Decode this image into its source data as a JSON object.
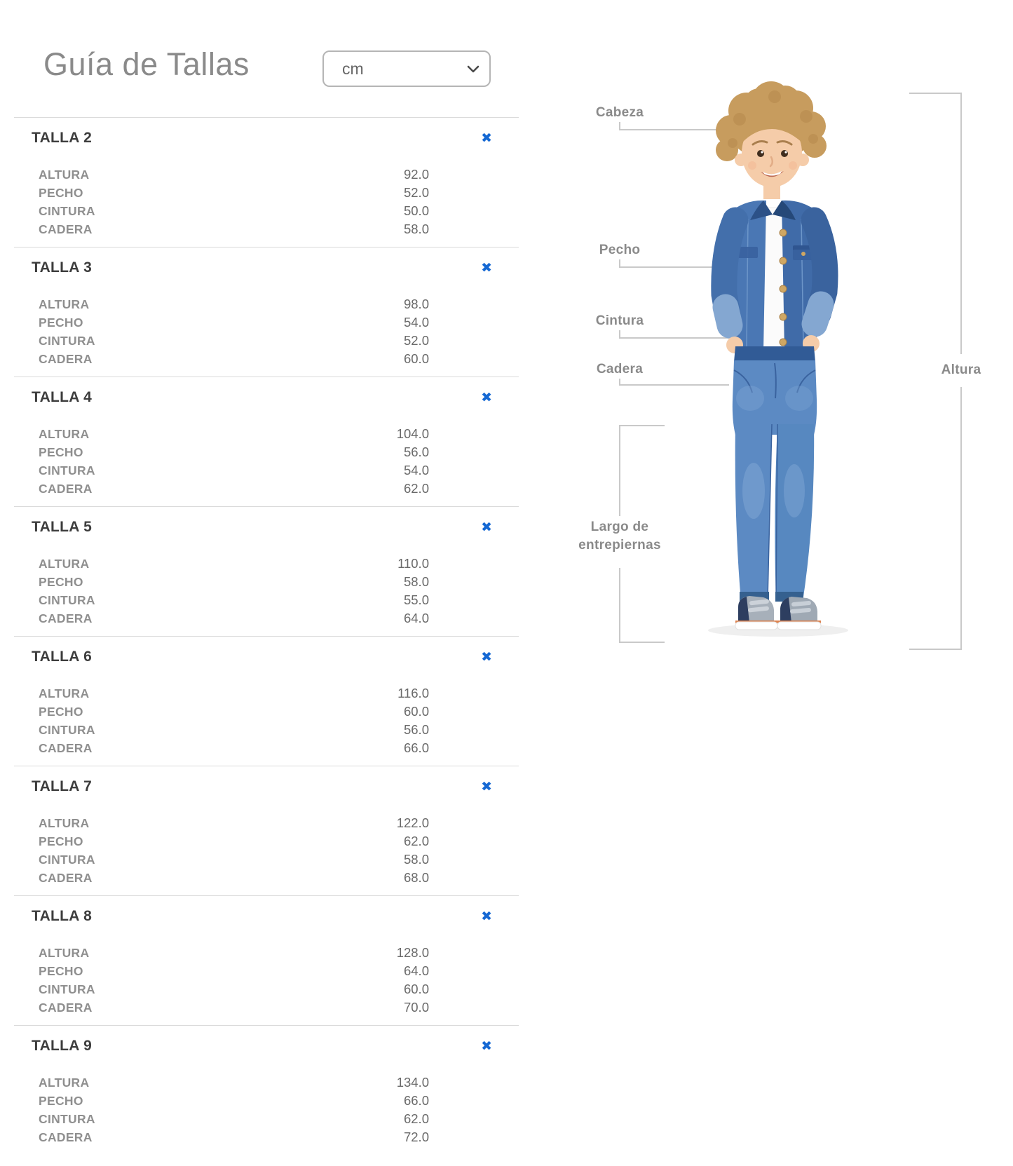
{
  "header": {
    "title": "Guía de Tallas"
  },
  "unit_select": {
    "value": "cm"
  },
  "icons": {
    "close": "✖",
    "chevron": "chevron-down"
  },
  "measurement_labels": [
    "ALTURA",
    "PECHO",
    "CINTURA",
    "CADERA"
  ],
  "sizes": [
    {
      "name": "TALLA 2",
      "values": [
        "92.0",
        "52.0",
        "50.0",
        "58.0"
      ]
    },
    {
      "name": "TALLA 3",
      "values": [
        "98.0",
        "54.0",
        "52.0",
        "60.0"
      ]
    },
    {
      "name": "TALLA 4",
      "values": [
        "104.0",
        "56.0",
        "54.0",
        "62.0"
      ]
    },
    {
      "name": "TALLA 5",
      "values": [
        "110.0",
        "58.0",
        "55.0",
        "64.0"
      ]
    },
    {
      "name": "TALLA 6",
      "values": [
        "116.0",
        "60.0",
        "56.0",
        "66.0"
      ]
    },
    {
      "name": "TALLA 7",
      "values": [
        "122.0",
        "62.0",
        "58.0",
        "68.0"
      ]
    },
    {
      "name": "TALLA 8",
      "values": [
        "128.0",
        "64.0",
        "60.0",
        "70.0"
      ]
    },
    {
      "name": "TALLA 9",
      "values": [
        "134.0",
        "66.0",
        "62.0",
        "72.0"
      ]
    }
  ],
  "figure_annotations": {
    "cabeza": "Cabeza",
    "pecho": "Pecho",
    "cintura": "Cintura",
    "cadera": "Cadera",
    "largo_line1": "Largo de",
    "largo_line2": "entrepiernas",
    "altura": "Altura"
  },
  "colors": {
    "accent_blue": "#1568d3",
    "title_gray": "#8a8a8a",
    "heading_dark": "#3d3d3d",
    "label_gray": "#8f8f8f",
    "value_gray": "#696969",
    "divider": "#dadada",
    "annotation_line": "#c9c9c9"
  }
}
